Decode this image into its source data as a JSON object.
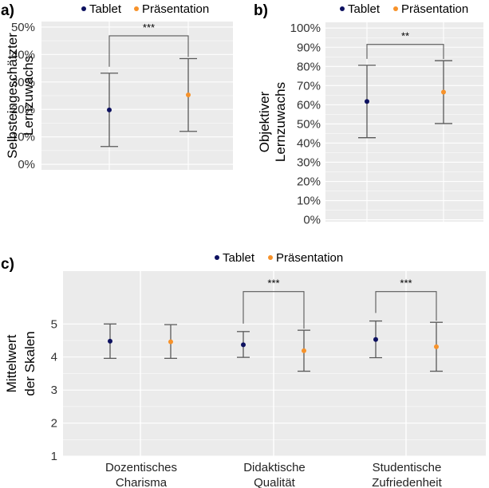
{
  "colors": {
    "tablet": "#0d1160",
    "praesentation": "#f7922a",
    "panel_bg": "#ebebeb",
    "grid": "#ffffff",
    "errorbar": "#595959"
  },
  "chart_data": [
    {
      "panel": "a)",
      "type": "scatter",
      "ylabel": [
        "Selbsteingeschätzter",
        "Lernzuwachs"
      ],
      "yticks": [
        "0%",
        "10%",
        "20%",
        "30%",
        "40%",
        "50%"
      ],
      "ylim": [
        -2,
        52
      ],
      "legend": [
        "Tablet",
        "Präsentation"
      ],
      "legend_position": "top",
      "series": [
        {
          "name": "Tablet",
          "points": [
            {
              "x": 1,
              "y": 19.8,
              "lo": 6.5,
              "hi": 33.2
            }
          ]
        },
        {
          "name": "Präsentation",
          "points": [
            {
              "x": 2,
              "y": 25.3,
              "lo": 12.0,
              "hi": 38.5
            }
          ]
        }
      ],
      "significance": [
        {
          "x1": 1,
          "x2": 2,
          "y": 46.8,
          "label": "***"
        }
      ]
    },
    {
      "panel": "b)",
      "type": "scatter",
      "ylabel": [
        "Objektiver",
        "Lernzuwachs"
      ],
      "yticks": [
        "0%",
        "10%",
        "20%",
        "30%",
        "40%",
        "50%",
        "60%",
        "70%",
        "80%",
        "90%",
        "100%"
      ],
      "ylim": [
        -1,
        103
      ],
      "legend": [
        "Tablet",
        "Präsentation"
      ],
      "legend_position": "top",
      "series": [
        {
          "name": "Tablet",
          "points": [
            {
              "x": 1,
              "y": 61.7,
              "lo": 42.8,
              "hi": 80.6
            }
          ]
        },
        {
          "name": "Präsentation",
          "points": [
            {
              "x": 2,
              "y": 66.6,
              "lo": 50.2,
              "hi": 83.0
            }
          ]
        }
      ],
      "significance": [
        {
          "x1": 1,
          "x2": 2,
          "y": 91.5,
          "label": "**"
        }
      ]
    },
    {
      "panel": "c)",
      "type": "scatter",
      "ylabel": [
        "Mittelwert",
        "der Skalen"
      ],
      "yticks": [
        "1",
        "2",
        "3",
        "4",
        "5"
      ],
      "ylim": [
        1,
        6.6
      ],
      "categories": [
        [
          "Dozentisches",
          "Charisma"
        ],
        [
          "Didaktische",
          "Qualität"
        ],
        [
          "Studentische",
          "Zufriedenheit"
        ]
      ],
      "legend": [
        "Tablet",
        "Präsentation"
      ],
      "legend_position": "top",
      "series": [
        {
          "name": "Tablet",
          "points": [
            {
              "x": 1,
              "y": 4.48,
              "lo": 3.96,
              "hi": 5.0
            },
            {
              "x": 2,
              "y": 4.37,
              "lo": 3.99,
              "hi": 4.77
            },
            {
              "x": 3,
              "y": 4.53,
              "lo": 3.98,
              "hi": 5.09
            }
          ]
        },
        {
          "name": "Präsentation",
          "points": [
            {
              "x": 1,
              "y": 4.46,
              "lo": 3.96,
              "hi": 4.98
            },
            {
              "x": 2,
              "y": 4.19,
              "lo": 3.57,
              "hi": 4.81
            },
            {
              "x": 3,
              "y": 4.31,
              "lo": 3.57,
              "hi": 5.05
            }
          ]
        }
      ],
      "significance": [
        {
          "x": 2,
          "y": 5.98,
          "label": "***"
        },
        {
          "x": 3,
          "y": 5.98,
          "label": "***"
        }
      ]
    }
  ]
}
